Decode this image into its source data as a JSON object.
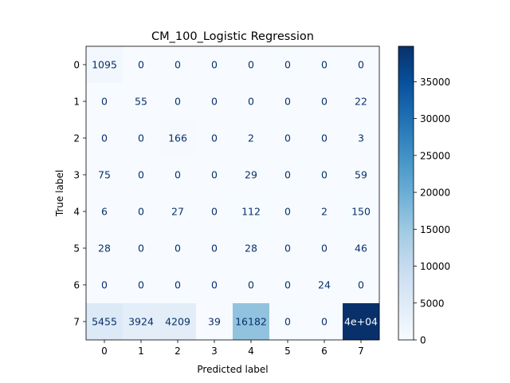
{
  "chart_data": {
    "type": "heatmap",
    "title": "CM_100_Logistic Regression",
    "xlabel": "Predicted label",
    "ylabel": "True label",
    "x_ticks": [
      "0",
      "1",
      "2",
      "3",
      "4",
      "5",
      "6",
      "7"
    ],
    "y_ticks": [
      "0",
      "1",
      "2",
      "3",
      "4",
      "5",
      "6",
      "7"
    ],
    "matrix": [
      [
        1095,
        0,
        0,
        0,
        0,
        0,
        0,
        0
      ],
      [
        0,
        55,
        0,
        0,
        0,
        0,
        0,
        22
      ],
      [
        0,
        0,
        166,
        0,
        2,
        0,
        0,
        3
      ],
      [
        75,
        0,
        0,
        0,
        29,
        0,
        0,
        59
      ],
      [
        6,
        0,
        27,
        0,
        112,
        0,
        2,
        150
      ],
      [
        28,
        0,
        0,
        0,
        28,
        0,
        0,
        46
      ],
      [
        0,
        0,
        0,
        0,
        0,
        0,
        24,
        0
      ],
      [
        5455,
        3924,
        4209,
        39,
        16182,
        0,
        0,
        39800
      ]
    ],
    "cell_labels": [
      [
        "1095",
        "0",
        "0",
        "0",
        "0",
        "0",
        "0",
        "0"
      ],
      [
        "0",
        "55",
        "0",
        "0",
        "0",
        "0",
        "0",
        "22"
      ],
      [
        "0",
        "0",
        "166",
        "0",
        "2",
        "0",
        "0",
        "3"
      ],
      [
        "75",
        "0",
        "0",
        "0",
        "29",
        "0",
        "0",
        "59"
      ],
      [
        "6",
        "0",
        "27",
        "0",
        "112",
        "0",
        "2",
        "150"
      ],
      [
        "28",
        "0",
        "0",
        "0",
        "28",
        "0",
        "0",
        "46"
      ],
      [
        "0",
        "0",
        "0",
        "0",
        "0",
        "0",
        "24",
        "0"
      ],
      [
        "5455",
        "3924",
        "4209",
        "39",
        "16182",
        "0",
        "0",
        "4e+04"
      ]
    ],
    "colormap": "Blues",
    "colorbar": {
      "range": [
        0,
        39800
      ],
      "ticks": [
        0,
        5000,
        10000,
        15000,
        20000,
        25000,
        30000,
        35000
      ]
    },
    "grid": false
  }
}
